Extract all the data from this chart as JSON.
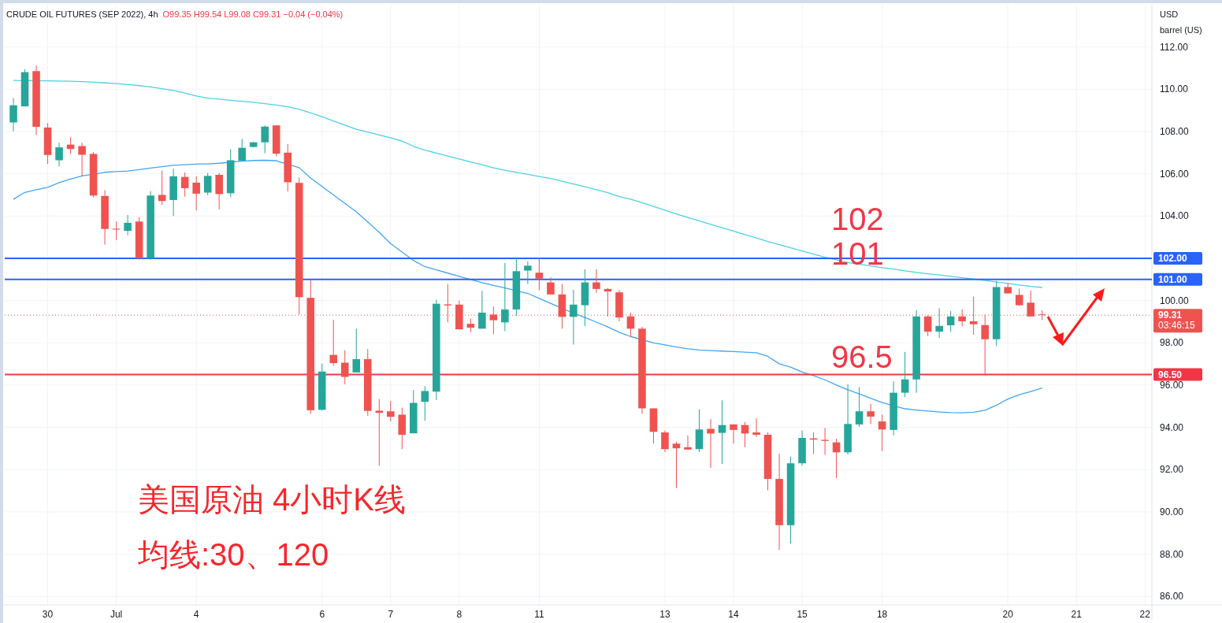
{
  "chart_data": {
    "type": "candlestick",
    "title": "CRUDE OIL FUTURES (SEP 2022), 4h",
    "subtitle": "O99.35 H99.54 L99.08 C99.31 −0.04 (−0.04%)",
    "ylabel": "USD barrel (US)",
    "categories": [
      null,
      null,
      null,
      "30",
      null,
      null,
      null,
      null,
      null,
      "Jul",
      null,
      null,
      null,
      null,
      null,
      null,
      "4",
      null,
      null,
      null,
      null,
      null,
      null,
      null,
      null,
      null,
      null,
      "6",
      null,
      null,
      null,
      null,
      null,
      "7",
      null,
      null,
      null,
      null,
      null,
      "8",
      null,
      null,
      null,
      null,
      null,
      null,
      "11",
      null,
      null,
      null,
      null,
      null,
      null,
      null,
      null,
      null,
      null,
      "13",
      null,
      null,
      null,
      null,
      null,
      "14",
      null,
      null,
      null,
      null,
      null,
      "15",
      null,
      null,
      null,
      null,
      null,
      null,
      "18",
      null,
      null,
      null,
      null,
      null,
      null,
      null,
      null,
      null,
      null,
      "20",
      null,
      null,
      null,
      null,
      null,
      "21",
      null,
      null,
      null,
      null,
      null,
      "22"
    ],
    "ohlc": [
      [
        108.43,
        109.58,
        108.01,
        109.24
      ],
      [
        109.19,
        110.95,
        109.19,
        110.81
      ],
      [
        110.86,
        111.12,
        107.84,
        108.22
      ],
      [
        108.19,
        108.4,
        106.46,
        106.89
      ],
      [
        106.64,
        107.47,
        106.34,
        107.25
      ],
      [
        107.38,
        107.73,
        106.94,
        107.17
      ],
      [
        107.31,
        107.47,
        105.88,
        106.9
      ],
      [
        106.94,
        107.03,
        104.88,
        104.97
      ],
      [
        104.95,
        105.23,
        102.65,
        103.39
      ],
      [
        103.4,
        103.74,
        102.86,
        103.37
      ],
      [
        103.3,
        104.05,
        103.09,
        103.68
      ],
      [
        103.74,
        103.95,
        101.94,
        102.01
      ],
      [
        102.01,
        105.18,
        101.94,
        104.97
      ],
      [
        105.0,
        106.15,
        104.53,
        104.71
      ],
      [
        104.76,
        106.24,
        104.0,
        105.88
      ],
      [
        105.85,
        106.06,
        104.92,
        105.32
      ],
      [
        105.58,
        105.88,
        104.27,
        105.06
      ],
      [
        105.11,
        106.04,
        104.99,
        105.9
      ],
      [
        105.95,
        106.04,
        104.32,
        105.04
      ],
      [
        105.08,
        107.16,
        104.9,
        106.64
      ],
      [
        106.62,
        107.65,
        106.62,
        107.23
      ],
      [
        107.27,
        107.5,
        107.25,
        107.49
      ],
      [
        107.49,
        108.29,
        106.97,
        108.23
      ],
      [
        108.29,
        108.29,
        106.83,
        106.95
      ],
      [
        107.0,
        107.41,
        105.16,
        105.6
      ],
      [
        105.57,
        105.83,
        99.34,
        100.16
      ],
      [
        100.13,
        100.99,
        94.64,
        94.81
      ],
      [
        94.83,
        97.02,
        94.8,
        96.64
      ],
      [
        97.43,
        99.09,
        96.92,
        97.04
      ],
      [
        97.06,
        97.65,
        96.04,
        96.39
      ],
      [
        96.6,
        98.67,
        96.6,
        97.23
      ],
      [
        97.23,
        97.71,
        94.55,
        94.78
      ],
      [
        94.79,
        95.34,
        92.18,
        94.69
      ],
      [
        94.76,
        95.25,
        94.29,
        94.5
      ],
      [
        94.6,
        94.93,
        92.97,
        93.65
      ],
      [
        93.72,
        95.77,
        93.72,
        95.16
      ],
      [
        95.21,
        95.95,
        94.32,
        95.72
      ],
      [
        95.69,
        100.04,
        95.29,
        99.85
      ],
      [
        99.82,
        100.78,
        98.97,
        99.77
      ],
      [
        99.81,
        99.99,
        98.64,
        98.64
      ],
      [
        98.9,
        99.15,
        98.5,
        98.72
      ],
      [
        98.67,
        100.46,
        98.67,
        99.43
      ],
      [
        99.34,
        99.72,
        98.41,
        99.07
      ],
      [
        98.97,
        101.78,
        98.55,
        99.58
      ],
      [
        99.58,
        102.01,
        99.29,
        101.39
      ],
      [
        101.42,
        101.86,
        100.78,
        101.65
      ],
      [
        101.32,
        102.01,
        100.48,
        101.04
      ],
      [
        100.86,
        101.09,
        100.29,
        100.29
      ],
      [
        100.29,
        100.78,
        98.67,
        99.23
      ],
      [
        99.23,
        100.51,
        97.92,
        99.81
      ],
      [
        99.78,
        101.48,
        98.79,
        100.86
      ],
      [
        100.86,
        101.48,
        100.37,
        100.55
      ],
      [
        100.55,
        100.6,
        99.25,
        100.43
      ],
      [
        100.39,
        100.5,
        99.02,
        99.2
      ],
      [
        99.25,
        99.43,
        98.27,
        98.67
      ],
      [
        98.67,
        98.76,
        94.64,
        94.9
      ],
      [
        94.9,
        94.9,
        93.23,
        93.79
      ],
      [
        93.76,
        93.85,
        92.83,
        92.97
      ],
      [
        93.23,
        93.32,
        91.13,
        93.01
      ],
      [
        93.06,
        93.62,
        92.95,
        92.95
      ],
      [
        92.97,
        94.85,
        92.83,
        93.9
      ],
      [
        93.93,
        94.39,
        92.09,
        93.71
      ],
      [
        93.74,
        95.28,
        92.27,
        94.11
      ],
      [
        94.14,
        94.15,
        93.23,
        93.88
      ],
      [
        94.11,
        94.25,
        93.06,
        93.71
      ],
      [
        93.76,
        94.43,
        93.55,
        93.65
      ],
      [
        93.65,
        93.76,
        91.02,
        91.56
      ],
      [
        91.56,
        92.76,
        88.2,
        89.37
      ],
      [
        89.37,
        92.62,
        88.5,
        92.3
      ],
      [
        92.3,
        93.85,
        92.18,
        93.5
      ],
      [
        93.48,
        93.76,
        92.74,
        93.42
      ],
      [
        93.41,
        93.97,
        92.71,
        93.36
      ],
      [
        93.29,
        93.46,
        91.6,
        92.82
      ],
      [
        92.82,
        96.04,
        92.71,
        94.16
      ],
      [
        94.14,
        95.9,
        94.02,
        94.76
      ],
      [
        94.76,
        95.11,
        94.16,
        94.51
      ],
      [
        94.28,
        94.6,
        92.88,
        93.9
      ],
      [
        93.88,
        96.17,
        93.62,
        95.64
      ],
      [
        95.64,
        97.57,
        95.43,
        96.27
      ],
      [
        96.27,
        99.55,
        95.64,
        99.25
      ],
      [
        99.25,
        99.3,
        98.32,
        98.53
      ],
      [
        98.53,
        99.64,
        98.23,
        98.8
      ],
      [
        98.83,
        99.5,
        98.52,
        99.25
      ],
      [
        99.25,
        99.58,
        98.78,
        99.02
      ],
      [
        99.02,
        100.19,
        98.38,
        98.88
      ],
      [
        98.84,
        99.34,
        96.5,
        98.17
      ],
      [
        98.17,
        100.93,
        97.85,
        100.64
      ],
      [
        100.64,
        100.82,
        100.34,
        100.34
      ],
      [
        100.27,
        100.57,
        99.75,
        99.78
      ],
      [
        99.9,
        100.47,
        99.25,
        99.25
      ],
      [
        99.35,
        99.54,
        99.08,
        99.31
      ],
      null,
      null,
      null,
      null,
      null,
      null,
      null,
      null,
      null
    ],
    "colors": [
      "#26a69a",
      "#26a69a",
      "#ef5350",
      "#ef5350",
      "#26a69a",
      "#ef5350",
      "#ef5350",
      "#ef5350",
      "#ef5350",
      "#ef5350",
      "#26a69a",
      "#ef5350",
      "#26a69a",
      "#ef5350",
      "#26a69a",
      "#ef5350",
      "#ef5350",
      "#26a69a",
      "#ef5350",
      "#26a69a",
      "#26a69a",
      "#26a69a",
      "#26a69a",
      "#ef5350",
      "#ef5350",
      "#ef5350",
      "#ef5350",
      "#26a69a",
      "#ef5350",
      "#ef5350",
      "#26a69a",
      "#ef5350",
      "#ef5350",
      "#ef5350",
      "#ef5350",
      "#26a69a",
      "#26a69a",
      "#26a69a",
      "#ef5350",
      "#ef5350",
      "#ef5350",
      "#26a69a",
      "#ef5350",
      "#26a69a",
      "#26a69a",
      "#26a69a",
      "#ef5350",
      "#ef5350",
      "#ef5350",
      "#26a69a",
      "#26a69a",
      "#ef5350",
      "#ef5350",
      "#ef5350",
      "#ef5350",
      "#ef5350",
      "#ef5350",
      "#ef5350",
      "#ef5350",
      "#ef5350",
      "#26a69a",
      "#ef5350",
      "#26a69a",
      "#ef5350",
      "#ef5350",
      "#ef5350",
      "#ef5350",
      "#ef5350",
      "#26a69a",
      "#26a69a",
      "#ef5350",
      "#ef5350",
      "#ef5350",
      "#26a69a",
      "#26a69a",
      "#ef5350",
      "#ef5350",
      "#26a69a",
      "#26a69a",
      "#26a69a",
      "#ef5350",
      "#26a69a",
      "#26a69a",
      "#ef5350",
      "#ef5350",
      "#ef5350",
      "#26a69a",
      "#ef5350",
      "#ef5350",
      "#ef5350",
      "#ef5350",
      null,
      null,
      null,
      null,
      null,
      null,
      null,
      null,
      null
    ],
    "series": [
      {
        "type": "line",
        "color": "#42a5f5",
        "values": [
          104.8,
          105.12,
          105.25,
          105.36,
          105.58,
          105.75,
          105.9,
          null,
          106.07,
          106.1,
          106.13,
          106.2,
          106.27,
          106.34,
          106.4,
          106.43,
          106.46,
          106.47,
          106.5,
          null,
          106.6,
          106.63,
          106.64,
          106.62,
          null,
          106.29,
          105.8,
          105.4,
          105.0,
          104.6,
          104.2,
          103.72,
          103.23,
          102.7,
          102.3,
          101.9,
          101.6,
          101.45,
          101.3,
          101.15,
          101.0,
          100.85,
          100.72,
          100.6,
          100.47,
          100.34,
          100.1,
          99.87,
          null,
          99.4,
          99.2,
          98.98,
          98.75,
          98.5,
          98.3,
          null,
          98.0,
          97.9,
          97.8,
          97.72,
          97.66,
          97.63,
          97.61,
          97.59,
          97.56,
          97.53,
          97.36,
          97.01,
          96.85,
          96.62,
          96.45,
          96.25,
          96.0,
          95.78,
          95.58,
          95.38,
          95.17,
          null,
          94.88,
          94.82,
          94.77,
          94.73,
          94.7,
          94.69,
          94.72,
          94.81,
          95.05,
          95.34,
          95.55,
          95.7,
          95.86,
          null,
          null,
          null,
          null,
          null,
          null,
          null,
          null,
          null
        ]
      },
      {
        "type": "line",
        "color": "#4dd0e1",
        "values": [
          110.42,
          null,
          null,
          110.4,
          110.39,
          110.38,
          110.36,
          110.33,
          110.3,
          110.27,
          110.22,
          110.17,
          110.11,
          110.03,
          109.94,
          109.82,
          109.68,
          109.58,
          109.53,
          109.48,
          109.43,
          109.38,
          109.32,
          109.25,
          109.17,
          109.06,
          108.88,
          108.7,
          108.5,
          108.3,
          108.11,
          107.98,
          107.84,
          107.71,
          107.55,
          107.3,
          107.12,
          106.98,
          106.84,
          106.7,
          106.56,
          106.43,
          106.28,
          106.17,
          106.07,
          105.97,
          105.87,
          105.78,
          105.65,
          105.52,
          105.39,
          105.25,
          105.11,
          104.92,
          104.8,
          104.63,
          104.45,
          104.28,
          104.1,
          103.93,
          103.77,
          103.61,
          103.45,
          103.29,
          103.12,
          102.96,
          102.8,
          102.65,
          102.5,
          102.35,
          102.2,
          102.05,
          101.93,
          101.8,
          101.72,
          101.64,
          101.56,
          101.49,
          101.41,
          101.33,
          101.27,
          101.21,
          101.15,
          101.08,
          101.02,
          100.95,
          100.88,
          100.81,
          100.74,
          100.67,
          100.62,
          null,
          null,
          null,
          null,
          null,
          null,
          null,
          null,
          null
        ]
      }
    ],
    "ylim": [
      85.6,
      114
    ],
    "yticks": [
      {
        "value": 86,
        "label": "86.00"
      },
      {
        "value": 88,
        "label": "88.00"
      },
      {
        "value": 90,
        "label": "90.00"
      },
      {
        "value": 92,
        "label": "92.00"
      },
      {
        "value": 94,
        "label": "94.00"
      },
      {
        "value": 96,
        "label": "96.00"
      },
      {
        "value": 98,
        "label": "98.00"
      },
      {
        "value": 100,
        "label": "100.00"
      },
      {
        "value": 102,
        "label": "102.00"
      },
      {
        "value": 104,
        "label": "104.00"
      },
      {
        "value": 106,
        "label": "106.00"
      },
      {
        "value": 108,
        "label": "108.00"
      },
      {
        "value": 110,
        "label": "110.00"
      },
      {
        "value": 112,
        "label": "112.00"
      }
    ],
    "grid": true,
    "ref_lines": [
      {
        "axis": "y",
        "value": 102,
        "label": "102.00",
        "color": "#2962ff"
      },
      {
        "axis": "y",
        "value": 101,
        "label": "101.00",
        "color": "#2962ff"
      },
      {
        "axis": "y",
        "value": 96.5,
        "label": "96.50",
        "color": "#f23645"
      },
      {
        "axis": "y",
        "value": 99.31,
        "label": "99.31",
        "color": "#ef5350",
        "line_style": "dotted"
      }
    ],
    "annotations": [
      "美国原油 4小时K线",
      "均线:30、120",
      {
        "text": "102",
        "y": 102
      },
      {
        "text": "101",
        "y": 101
      },
      {
        "text": "96.5",
        "y": 96.5
      },
      "03:46:15"
    ]
  }
}
